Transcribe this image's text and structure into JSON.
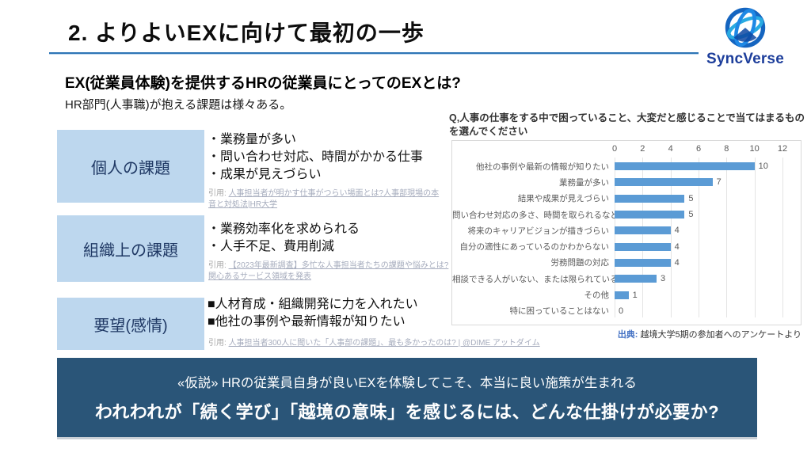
{
  "header": {
    "title": "2. よりよいEXに向けて最初の一歩",
    "accent_color": "#2E75B6"
  },
  "logo": {
    "name": "SyncVerse",
    "text_color": "#1D3E9B"
  },
  "lead": {
    "heading": "EX(従業員体験)を提供するHRの従業員にとってのEXとは?",
    "subheading": "HR部門(人事職)が抱える課題は様々ある。"
  },
  "rows": [
    {
      "box_label": "個人の課題",
      "bullets": [
        "・業務量が多い",
        "・問い合わせ対応、時間がかかる仕事",
        "・成果が見えづらい"
      ],
      "citation_prefix": "引用:",
      "citation_link": "人事担当者が明かす仕事がつらい場面とは?人事部現場の本音と対処法|HR大学"
    },
    {
      "box_label": "組織上の課題",
      "bullets": [
        "・業務効率化を求められる",
        "・人手不足、費用削減"
      ],
      "citation_prefix": "引用:",
      "citation_link": "【2023年最新調査】多忙な人事担当者たちの課題や悩みとは?関心あるサービス領域を発表"
    },
    {
      "box_label": "要望(感情)",
      "bullets": [
        "■人材育成・組織開発に力を入れたい",
        "■他社の事例や最新情報が知りたい"
      ],
      "citation_prefix": "引用:",
      "citation_link": "人事担当者300人に聞いた「人事部の課題」、最も多かったのは? | @DIME アットダイム"
    }
  ],
  "box_style": {
    "fill": "#BDD7EE",
    "text_color": "#1F3864"
  },
  "chart_data": {
    "type": "bar",
    "orientation": "horizontal",
    "title": "Q,人事の仕事をする中で困っていること、大変だと感じることで当てはまるものを選んでください",
    "categories": [
      "他社の事例や最新の情報が知りたい",
      "業務量が多い",
      "結果や成果が見えづらい",
      "問い合わせ対応の多さ、時間を取られるなど",
      "将来のキャリアビジョンが描きづらい",
      "自分の適性にあっているのかわからない",
      "労務問題の対応",
      "相談できる人がいない、または限られている…",
      "その他",
      "特に困っていることはない"
    ],
    "values": [
      10,
      7,
      5,
      5,
      4,
      4,
      4,
      3,
      1,
      0
    ],
    "xlim": [
      0,
      12
    ],
    "xticks": [
      0,
      2,
      4,
      6,
      8,
      10,
      12
    ],
    "bar_color": "#5B9BD5",
    "grid": true,
    "legend": false,
    "source_prefix": "出典:",
    "source": " 越境大学5期の参加者へのアンケートより"
  },
  "banner": {
    "line1": "«仮説» HRの従業員自身が良いEXを体験してこそ、本当に良い施策が生まれる",
    "line2": "われわれが「続く学び」「越境の意味」を感じるには、どんな仕掛けが必要か?",
    "bg_color": "#2A5578"
  }
}
